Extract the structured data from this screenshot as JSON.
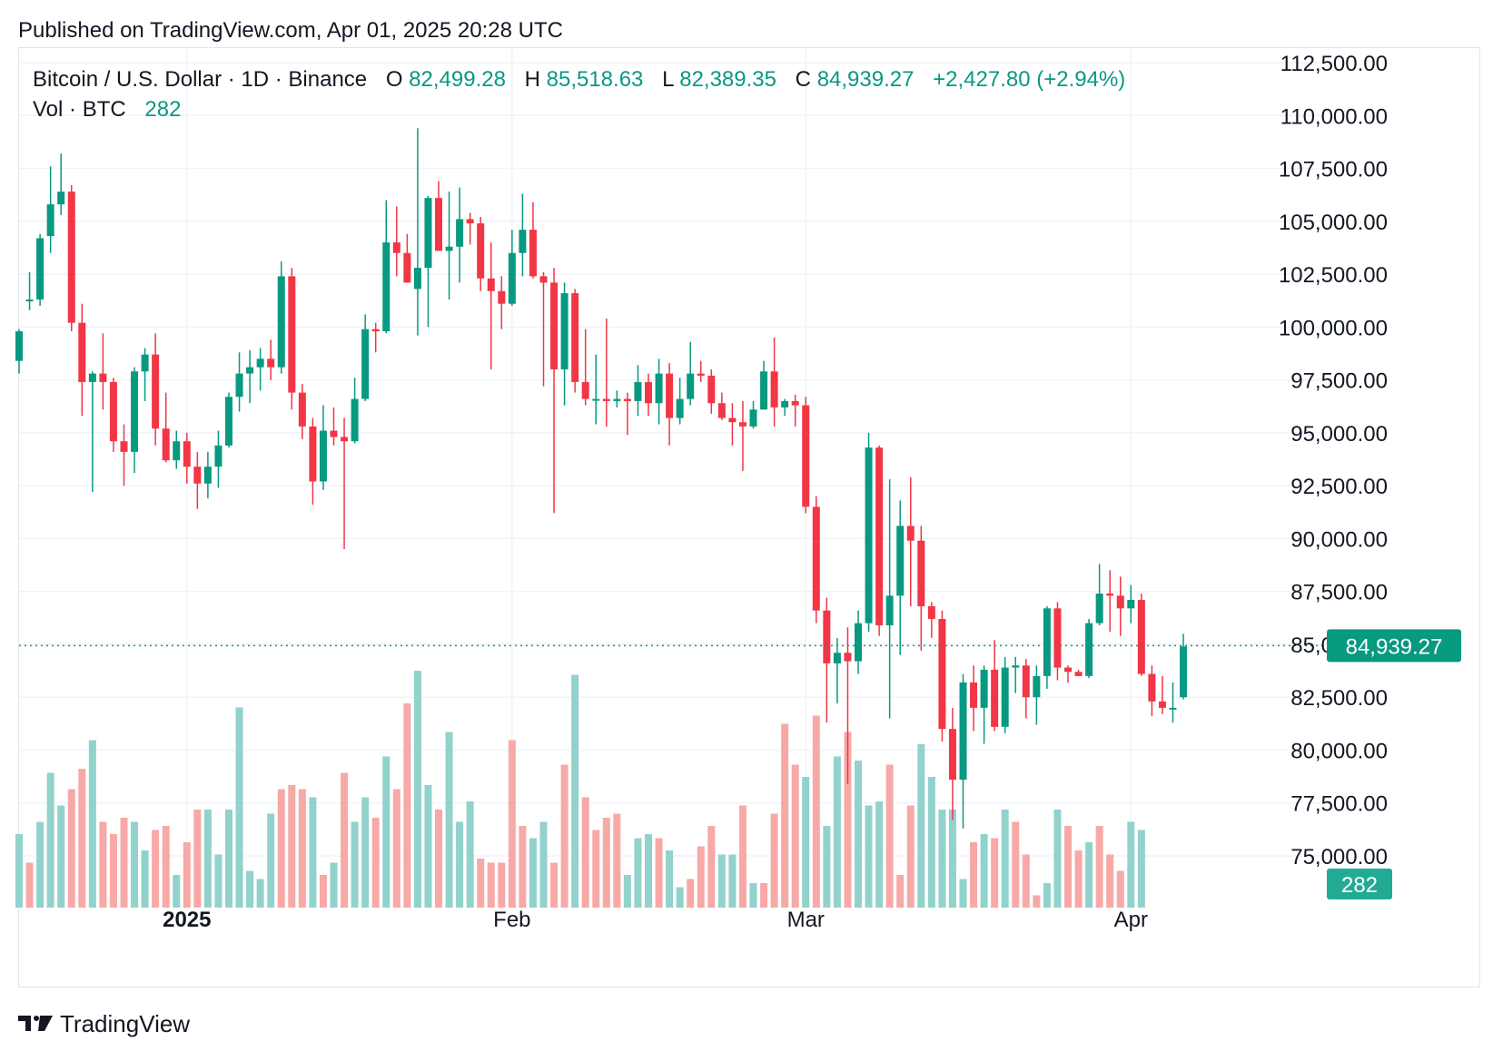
{
  "published": "Published on TradingView.com, Apr 01, 2025 20:28 UTC",
  "legend": {
    "symbol": "Bitcoin / U.S. Dollar · 1D · Binance",
    "o_label": "O",
    "o_value": "82,499.28",
    "h_label": "H",
    "h_value": "85,518.63",
    "l_label": "L",
    "l_value": "82,389.35",
    "c_label": "C",
    "c_value": "84,939.27",
    "change": "+2,427.80 (+2.94%)",
    "vol_label": "Vol · BTC",
    "vol_value": "282"
  },
  "price_badge": "84,939.27",
  "volume_badge": "282",
  "logo_text": "TradingView",
  "colors": {
    "up": "#089981",
    "down": "#f23645",
    "up_volume": "#92d2cc",
    "down_volume": "#f7a9a7",
    "grid": "#f0f3fa",
    "text": "#131722",
    "up_text": "#089981"
  },
  "chart_data": {
    "type": "candlestick",
    "symbol": "Bitcoin / U.S. Dollar",
    "interval": "1D",
    "exchange": "Binance",
    "y_range": [
      72000,
      113200
    ],
    "y_ticks": [
      "112,500.00",
      "110,000.00",
      "107,500.00",
      "105,000.00",
      "102,500.00",
      "100,000.00",
      "97,500.00",
      "95,000.00",
      "92,500.00",
      "90,000.00",
      "87,500.00",
      "85,000.00",
      "82,500.00",
      "80,000.00",
      "77,500.00",
      "75,000.00"
    ],
    "y_tick_values": [
      112500,
      110000,
      107500,
      105000,
      102500,
      100000,
      97500,
      95000,
      92500,
      90000,
      87500,
      85000,
      82500,
      80000,
      77500,
      75000
    ],
    "x_ticks": [
      {
        "label": "2025",
        "index": 16,
        "bold": true
      },
      {
        "label": "Feb",
        "index": 47,
        "bold": false
      },
      {
        "label": "Mar",
        "index": 75,
        "bold": false
      },
      {
        "label": "Apr",
        "index": 106,
        "bold": false
      }
    ],
    "last_price": 84939.27,
    "candles": [
      [
        98400,
        99900,
        97800,
        99800
      ],
      [
        101300,
        102600,
        100800,
        101300
      ],
      [
        101300,
        104400,
        101000,
        104200
      ],
      [
        104300,
        107600,
        103500,
        105800
      ],
      [
        105800,
        108200,
        105300,
        106400
      ],
      [
        106400,
        106700,
        99800,
        100200
      ],
      [
        100200,
        101100,
        95800,
        97400
      ],
      [
        97400,
        97900,
        92200,
        97800
      ],
      [
        97800,
        99700,
        96100,
        97400
      ],
      [
        97400,
        97600,
        94100,
        94600
      ],
      [
        94600,
        95400,
        92500,
        94100
      ],
      [
        94100,
        98100,
        93100,
        97900
      ],
      [
        97900,
        99000,
        96500,
        98700
      ],
      [
        98700,
        99700,
        94400,
        95200
      ],
      [
        95200,
        96900,
        93600,
        93700
      ],
      [
        93700,
        95100,
        93300,
        94600
      ],
      [
        94600,
        95000,
        92600,
        93400
      ],
      [
        93400,
        94100,
        91400,
        92600
      ],
      [
        92600,
        94100,
        91900,
        93400
      ],
      [
        93400,
        95100,
        92400,
        94400
      ],
      [
        94400,
        96900,
        94300,
        96700
      ],
      [
        96700,
        98800,
        96000,
        97800
      ],
      [
        97800,
        98900,
        96400,
        98100
      ],
      [
        98100,
        99000,
        97000,
        98500
      ],
      [
        98500,
        99400,
        97500,
        98100
      ],
      [
        98100,
        103100,
        97800,
        102400
      ],
      [
        102400,
        102800,
        96100,
        96900
      ],
      [
        96900,
        97300,
        94700,
        95300
      ],
      [
        95300,
        95700,
        91600,
        92700
      ],
      [
        92700,
        96300,
        92300,
        95100
      ],
      [
        95100,
        96200,
        94400,
        94800
      ],
      [
        94800,
        95700,
        89500,
        94600
      ],
      [
        94600,
        97600,
        94500,
        96600
      ],
      [
        96600,
        100600,
        96500,
        99900
      ],
      [
        99900,
        100200,
        98800,
        99800
      ],
      [
        99800,
        106000,
        99700,
        104000
      ],
      [
        104000,
        105700,
        102400,
        103500
      ],
      [
        103500,
        104400,
        102300,
        102100
      ],
      [
        101800,
        109400,
        99600,
        102800
      ],
      [
        102800,
        106200,
        100000,
        106100
      ],
      [
        106100,
        106900,
        103800,
        103600
      ],
      [
        103600,
        106400,
        101300,
        103800
      ],
      [
        103800,
        106600,
        102100,
        105100
      ],
      [
        105100,
        105400,
        103900,
        104900
      ],
      [
        104900,
        105200,
        101700,
        102300
      ],
      [
        102300,
        104000,
        98000,
        101700
      ],
      [
        101700,
        102400,
        99900,
        101100
      ],
      [
        101100,
        104600,
        101000,
        103500
      ],
      [
        103500,
        106300,
        102400,
        104600
      ],
      [
        104600,
        105900,
        102300,
        102400
      ],
      [
        102400,
        102600,
        97200,
        102100
      ],
      [
        102100,
        102800,
        91200,
        98000
      ],
      [
        98000,
        102100,
        96300,
        101600
      ],
      [
        101600,
        101800,
        96900,
        97400
      ],
      [
        97400,
        99900,
        96300,
        96600
      ],
      [
        96600,
        98700,
        95400,
        96600
      ],
      [
        96600,
        100400,
        95300,
        96500
      ],
      [
        96500,
        97000,
        96200,
        96600
      ],
      [
        96600,
        96900,
        94900,
        96500
      ],
      [
        96500,
        98200,
        95800,
        97400
      ],
      [
        97400,
        97800,
        95800,
        96400
      ],
      [
        96400,
        98500,
        95400,
        97800
      ],
      [
        97800,
        98300,
        94400,
        95700
      ],
      [
        95700,
        97600,
        95400,
        96600
      ],
      [
        96600,
        99300,
        96300,
        97800
      ],
      [
        97800,
        98400,
        97400,
        97700
      ],
      [
        97700,
        98000,
        95900,
        96400
      ],
      [
        96400,
        96900,
        95600,
        95700
      ],
      [
        95700,
        96400,
        94400,
        95500
      ],
      [
        95500,
        96500,
        93200,
        95300
      ],
      [
        95300,
        96500,
        95200,
        96100
      ],
      [
        96100,
        98400,
        96100,
        97900
      ],
      [
        97900,
        99500,
        95300,
        96200
      ],
      [
        96200,
        96600,
        95800,
        96500
      ],
      [
        96500,
        96800,
        95300,
        96300
      ],
      [
        96300,
        96700,
        91200,
        91500
      ],
      [
        91500,
        92000,
        86000,
        86600
      ],
      [
        86600,
        87200,
        81300,
        84100
      ],
      [
        84100,
        85300,
        82200,
        84600
      ],
      [
        84600,
        85800,
        78400,
        84200
      ],
      [
        84200,
        86600,
        83600,
        86000
      ],
      [
        86000,
        95000,
        85600,
        94300
      ],
      [
        94300,
        94400,
        85400,
        85900
      ],
      [
        85900,
        92800,
        81500,
        87300
      ],
      [
        87300,
        91800,
        84500,
        90600
      ],
      [
        90600,
        92900,
        86800,
        89900
      ],
      [
        89900,
        90600,
        84700,
        86800
      ],
      [
        86800,
        87000,
        85300,
        86200
      ],
      [
        86200,
        86600,
        80400,
        81000
      ],
      [
        81000,
        82000,
        76700,
        78600
      ],
      [
        78600,
        83600,
        76300,
        83200
      ],
      [
        83200,
        84000,
        80900,
        82000
      ],
      [
        82000,
        84000,
        80300,
        83800
      ],
      [
        83800,
        85200,
        80900,
        81100
      ],
      [
        81100,
        84400,
        80800,
        83900
      ],
      [
        83900,
        84400,
        82700,
        84000
      ],
      [
        84000,
        84300,
        81500,
        82500
      ],
      [
        82500,
        84000,
        81200,
        83500
      ],
      [
        83500,
        86800,
        82900,
        86700
      ],
      [
        86700,
        87000,
        83300,
        83900
      ],
      [
        83900,
        84000,
        83200,
        83700
      ],
      [
        83700,
        83800,
        83500,
        83500
      ],
      [
        83500,
        86200,
        83400,
        86000
      ],
      [
        86000,
        88800,
        85900,
        87400
      ],
      [
        87400,
        88500,
        85600,
        87300
      ],
      [
        87300,
        88200,
        85400,
        86700
      ],
      [
        86700,
        87800,
        86000,
        87100
      ],
      [
        87100,
        87400,
        83500,
        83600
      ],
      [
        83600,
        84000,
        81600,
        82300
      ],
      [
        82300,
        83500,
        81700,
        82000
      ],
      [
        82000,
        83200,
        81300,
        82000
      ],
      [
        82500,
        85500,
        82400,
        84900
      ]
    ],
    "volumes": [
      [
        18,
        "up"
      ],
      [
        11,
        "down"
      ],
      [
        21,
        "up"
      ],
      [
        33,
        "up"
      ],
      [
        25,
        "up"
      ],
      [
        29,
        "down"
      ],
      [
        34,
        "down"
      ],
      [
        41,
        "up"
      ],
      [
        21,
        "down"
      ],
      [
        18,
        "down"
      ],
      [
        22,
        "down"
      ],
      [
        21,
        "up"
      ],
      [
        14,
        "up"
      ],
      [
        19,
        "down"
      ],
      [
        20,
        "down"
      ],
      [
        8,
        "up"
      ],
      [
        16,
        "down"
      ],
      [
        24,
        "down"
      ],
      [
        24,
        "up"
      ],
      [
        13,
        "up"
      ],
      [
        24,
        "up"
      ],
      [
        49,
        "up"
      ],
      [
        9,
        "up"
      ],
      [
        7,
        "up"
      ],
      [
        23,
        "up"
      ],
      [
        29,
        "down"
      ],
      [
        30,
        "down"
      ],
      [
        29,
        "down"
      ],
      [
        27,
        "up"
      ],
      [
        8,
        "down"
      ],
      [
        11,
        "up"
      ],
      [
        33,
        "down"
      ],
      [
        21,
        "up"
      ],
      [
        27,
        "up"
      ],
      [
        22,
        "down"
      ],
      [
        37,
        "up"
      ],
      [
        29,
        "down"
      ],
      [
        50,
        "down"
      ],
      [
        58,
        "up"
      ],
      [
        30,
        "up"
      ],
      [
        24,
        "down"
      ],
      [
        43,
        "up"
      ],
      [
        21,
        "up"
      ],
      [
        26,
        "up"
      ],
      [
        12,
        "down"
      ],
      [
        11,
        "down"
      ],
      [
        11,
        "down"
      ],
      [
        41,
        "down"
      ],
      [
        20,
        "down"
      ],
      [
        17,
        "up"
      ],
      [
        21,
        "up"
      ],
      [
        11,
        "down"
      ],
      [
        35,
        "down"
      ],
      [
        57,
        "up"
      ],
      [
        27,
        "down"
      ],
      [
        19,
        "down"
      ],
      [
        22,
        "down"
      ],
      [
        23,
        "down"
      ],
      [
        8,
        "up"
      ],
      [
        17,
        "up"
      ],
      [
        18,
        "up"
      ],
      [
        17,
        "down"
      ],
      [
        14,
        "up"
      ],
      [
        5,
        "up"
      ],
      [
        7,
        "down"
      ],
      [
        15,
        "down"
      ],
      [
        20,
        "down"
      ],
      [
        13,
        "up"
      ],
      [
        13,
        "up"
      ],
      [
        25,
        "down"
      ],
      [
        6,
        "up"
      ],
      [
        6,
        "down"
      ],
      [
        23,
        "down"
      ],
      [
        45,
        "down"
      ],
      [
        35,
        "down"
      ],
      [
        32,
        "up"
      ],
      [
        47,
        "down"
      ],
      [
        20,
        "up"
      ],
      [
        37,
        "up"
      ],
      [
        43,
        "down"
      ],
      [
        36,
        "up"
      ],
      [
        25,
        "up"
      ],
      [
        26,
        "up"
      ],
      [
        35,
        "down"
      ],
      [
        8,
        "down"
      ],
      [
        25,
        "down"
      ],
      [
        40,
        "up"
      ],
      [
        32,
        "up"
      ],
      [
        24,
        "up"
      ],
      [
        24,
        "up"
      ],
      [
        7,
        "up"
      ],
      [
        16,
        "down"
      ],
      [
        18,
        "up"
      ],
      [
        17,
        "down"
      ],
      [
        24,
        "up"
      ],
      [
        21,
        "down"
      ],
      [
        13,
        "down"
      ],
      [
        3,
        "down"
      ],
      [
        6,
        "up"
      ],
      [
        24,
        "up"
      ],
      [
        20,
        "down"
      ],
      [
        14,
        "down"
      ],
      [
        16,
        "up"
      ],
      [
        20,
        "down"
      ],
      [
        13,
        "down"
      ],
      [
        9,
        "down"
      ],
      [
        21,
        "up"
      ],
      [
        19,
        "up"
      ]
    ],
    "volume_max": 60
  }
}
